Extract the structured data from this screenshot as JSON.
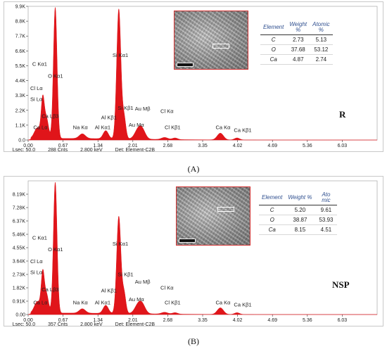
{
  "chart_data": [
    {
      "type": "line",
      "sample_label": "R",
      "caption": "(A)",
      "ylim": [
        0,
        9900
      ],
      "yticks": [
        0,
        1100,
        2200,
        3300,
        4400,
        5500,
        6600,
        7700,
        8800,
        9900
      ],
      "ytick_labels": [
        "0.0",
        "1.1K",
        "2.2K",
        "3.3K",
        "4.4K",
        "5.5K",
        "6.6K",
        "7.7K",
        "8.8K",
        "9.9K"
      ],
      "xlim": [
        0,
        6.7
      ],
      "xticks": [
        0.0,
        0.67,
        1.34,
        2.01,
        2.68,
        3.35,
        4.02,
        4.69,
        5.36,
        6.03
      ],
      "xtick_labels": [
        "0.00",
        "0.67",
        "1.34",
        "2.01",
        "2.68",
        "3.35",
        "4.02",
        "4.69",
        "5.36",
        "6.03"
      ],
      "peaks": [
        {
          "x": 0.18,
          "y": 800,
          "w": 0.06
        },
        {
          "x": 0.28,
          "y": 2700,
          "w": 0.03
        },
        {
          "x": 0.35,
          "y": 1500,
          "w": 0.04
        },
        {
          "x": 0.52,
          "y": 9700,
          "w": 0.035
        },
        {
          "x": 1.04,
          "y": 350,
          "w": 0.06
        },
        {
          "x": 1.49,
          "y": 600,
          "w": 0.05
        },
        {
          "x": 1.74,
          "y": 9600,
          "w": 0.04
        },
        {
          "x": 1.84,
          "y": 1600,
          "w": 0.035
        },
        {
          "x": 2.12,
          "y": 750,
          "w": 0.07
        },
        {
          "x": 2.2,
          "y": 450,
          "w": 0.06
        },
        {
          "x": 2.62,
          "y": 150,
          "w": 0.06
        },
        {
          "x": 2.82,
          "y": 120,
          "w": 0.05
        },
        {
          "x": 3.69,
          "y": 500,
          "w": 0.06
        },
        {
          "x": 4.01,
          "y": 150,
          "w": 0.05
        }
      ],
      "background": 120,
      "annotations": [
        {
          "text": "C  Kα1",
          "x": 0.08,
          "y": 5500
        },
        {
          "text": "O  Kα1",
          "x": 0.38,
          "y": 4600
        },
        {
          "text": "Cl Lα",
          "x": 0.04,
          "y": 3700
        },
        {
          "text": "Si Lα",
          "x": 0.04,
          "y": 2900
        },
        {
          "text": "Ca Lβ3",
          "x": 0.26,
          "y": 1650
        },
        {
          "text": "Ca Lα",
          "x": 0.1,
          "y": 800
        },
        {
          "text": "Na Kα",
          "x": 0.86,
          "y": 800
        },
        {
          "text": "Al Kα1",
          "x": 1.28,
          "y": 800
        },
        {
          "text": "Al Kβ1",
          "x": 1.4,
          "y": 1550
        },
        {
          "text": "Si Kα1",
          "x": 1.62,
          "y": 6150
        },
        {
          "text": "Si Kβ1",
          "x": 1.72,
          "y": 2250
        },
        {
          "text": "Au Mβ",
          "x": 2.05,
          "y": 2200
        },
        {
          "text": "Au Mα",
          "x": 1.93,
          "y": 1000
        },
        {
          "text": "Cl Kα",
          "x": 2.54,
          "y": 2000
        },
        {
          "text": "Cl Kβ1",
          "x": 2.62,
          "y": 800
        },
        {
          "text": "Ca Kα",
          "x": 3.6,
          "y": 800
        },
        {
          "text": "Ca Kβ1",
          "x": 3.95,
          "y": 600
        }
      ],
      "status": {
        "lsec": "Lsec: 50.0",
        "cnts": "288 Cnts",
        "kev": "2.800 keV",
        "det": "Det: Element-C2B"
      },
      "table": {
        "headers": [
          "Element",
          "Weight\n%",
          "Atomic\n%"
        ],
        "rows": [
          [
            "C",
            "2.73",
            "5.13"
          ],
          [
            "O",
            "37.68",
            "53.12"
          ],
          [
            "Ca",
            "4.87",
            "2.74"
          ]
        ]
      },
      "color": "#e0151a"
    },
    {
      "type": "line",
      "sample_label": "NSP",
      "caption": "(B)",
      "ylim": [
        0,
        9100
      ],
      "yticks": [
        0,
        910,
        1820,
        2730,
        3640,
        4550,
        5460,
        6370,
        7280,
        8190
      ],
      "ytick_labels": [
        "0.00",
        "0.91K",
        "1.82K",
        "2.73K",
        "3.64K",
        "4.55K",
        "5.46K",
        "6.37K",
        "7.28K",
        "8.19K"
      ],
      "xlim": [
        0,
        6.7
      ],
      "xticks": [
        0.0,
        0.67,
        1.34,
        2.01,
        2.68,
        3.35,
        4.02,
        4.69,
        5.36,
        6.03
      ],
      "xtick_labels": [
        "0.00",
        "0.67",
        "1.34",
        "2.01",
        "2.68",
        "3.35",
        "4.02",
        "4.69",
        "5.36",
        "6.03"
      ],
      "peaks": [
        {
          "x": 0.18,
          "y": 800,
          "w": 0.06
        },
        {
          "x": 0.28,
          "y": 2500,
          "w": 0.03
        },
        {
          "x": 0.35,
          "y": 1300,
          "w": 0.04
        },
        {
          "x": 0.52,
          "y": 8900,
          "w": 0.035
        },
        {
          "x": 1.04,
          "y": 300,
          "w": 0.06
        },
        {
          "x": 1.49,
          "y": 550,
          "w": 0.05
        },
        {
          "x": 1.74,
          "y": 6600,
          "w": 0.04
        },
        {
          "x": 1.84,
          "y": 1400,
          "w": 0.035
        },
        {
          "x": 2.12,
          "y": 650,
          "w": 0.07
        },
        {
          "x": 2.2,
          "y": 400,
          "w": 0.06
        },
        {
          "x": 2.62,
          "y": 120,
          "w": 0.06
        },
        {
          "x": 2.82,
          "y": 100,
          "w": 0.05
        },
        {
          "x": 3.69,
          "y": 450,
          "w": 0.06
        },
        {
          "x": 4.01,
          "y": 120,
          "w": 0.05
        }
      ],
      "background": 100,
      "annotations": [
        {
          "text": "C  Kα1",
          "x": 0.08,
          "y": 5100
        },
        {
          "text": "O  Kα1",
          "x": 0.38,
          "y": 4300
        },
        {
          "text": "Cl Lα",
          "x": 0.04,
          "y": 3500
        },
        {
          "text": "Si Lα",
          "x": 0.04,
          "y": 2750
        },
        {
          "text": "Ca Lβ3",
          "x": 0.26,
          "y": 1580
        },
        {
          "text": "Ca Lα",
          "x": 0.1,
          "y": 700
        },
        {
          "text": "Na Kα",
          "x": 0.86,
          "y": 700
        },
        {
          "text": "Al Kα1",
          "x": 1.28,
          "y": 700
        },
        {
          "text": "Al Kβ1",
          "x": 1.4,
          "y": 1500
        },
        {
          "text": "Si Kα1",
          "x": 1.62,
          "y": 4700
        },
        {
          "text": "Si Kβ1",
          "x": 1.72,
          "y": 2600
        },
        {
          "text": "Au Mβ",
          "x": 2.05,
          "y": 2100
        },
        {
          "text": "Au Mα",
          "x": 1.93,
          "y": 900
        },
        {
          "text": "Cl Kα",
          "x": 2.54,
          "y": 1700
        },
        {
          "text": "Cl Kβ1",
          "x": 2.62,
          "y": 700
        },
        {
          "text": "Ca Kα",
          "x": 3.6,
          "y": 700
        },
        {
          "text": "Ca Kβ1",
          "x": 3.95,
          "y": 550
        }
      ],
      "status": {
        "lsec": "Lsec: 50.0",
        "cnts": "357 Cnts",
        "kev": "2.800 keV",
        "det": "Det: Element-C2B"
      },
      "table": {
        "headers": [
          "Element",
          "Weight %",
          "Ato\nmic"
        ],
        "rows": [
          [
            "C",
            "5.20",
            "9.61"
          ],
          [
            "O",
            "38.87",
            "53.93"
          ],
          [
            "Ca",
            "8.15",
            "4.51"
          ]
        ]
      },
      "color": "#e0151a"
    }
  ]
}
